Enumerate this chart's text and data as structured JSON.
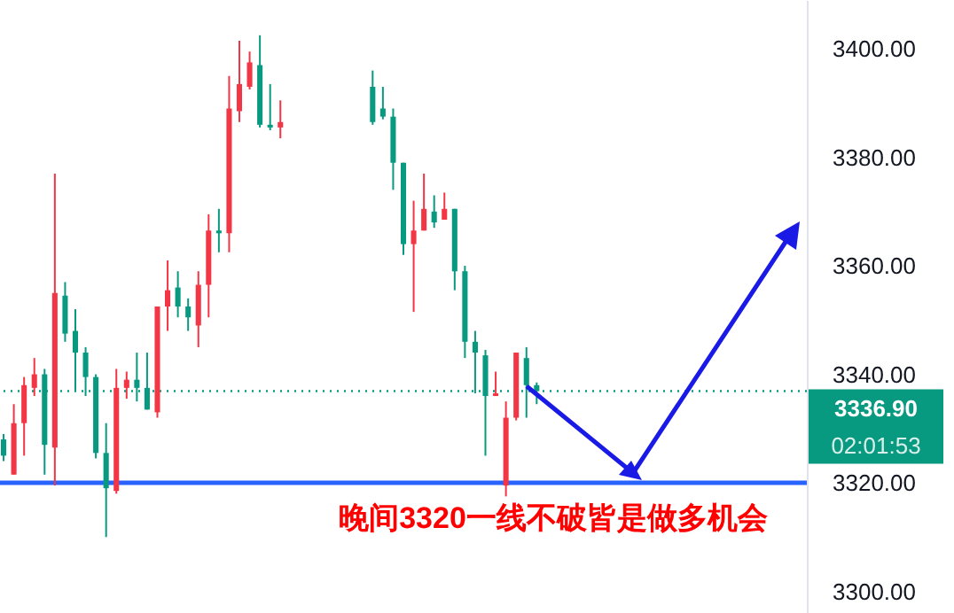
{
  "chart_data": {
    "type": "candlestick",
    "categories": [
      null,
      null,
      null,
      null,
      null,
      null,
      null,
      null,
      null,
      null,
      null,
      null,
      null,
      null,
      null,
      null,
      null,
      null,
      null,
      null,
      null,
      null,
      null,
      null,
      null,
      null,
      null,
      null,
      null,
      null,
      null,
      null,
      null,
      null,
      null,
      null,
      null,
      null,
      null,
      null,
      null,
      null,
      null,
      null,
      null,
      null,
      null,
      null,
      null,
      null,
      null,
      null,
      null,
      null,
      null,
      null,
      null,
      null,
      null,
      null,
      null,
      null,
      null,
      null,
      null,
      null,
      null,
      null,
      null,
      null,
      null,
      null,
      null,
      null,
      null,
      null,
      null,
      null,
      null
    ],
    "ohlc": [
      [
        3328,
        3329,
        3324,
        3325
      ],
      [
        3321.5,
        3334.5,
        3321.5,
        3331
      ],
      [
        3331,
        3339.5,
        3325,
        3338
      ],
      [
        3337.5,
        3343,
        3336,
        3340
      ],
      [
        3340,
        3341,
        3321.5,
        3327
      ],
      [
        3326.5,
        3377,
        3319.5,
        3355
      ],
      [
        3354.5,
        3357,
        3346,
        3347.5
      ],
      [
        3348,
        3352,
        3337,
        3344
      ],
      [
        3344,
        3345,
        3336,
        3339.5
      ],
      [
        3339.5,
        3340,
        3324.5,
        3325.5
      ],
      [
        3325.5,
        3331,
        3310,
        3319
      ],
      [
        3318.5,
        3341,
        3318,
        3337.5
      ],
      [
        3337.5,
        3340.5,
        3335.5,
        3339
      ],
      [
        3339,
        3344,
        3335,
        3337.5
      ],
      [
        3337.5,
        3344,
        3333.5,
        3333.5
      ],
      [
        3333,
        3352.5,
        3332,
        3352.5
      ],
      [
        3352.5,
        3361,
        3348,
        3355.5
      ],
      [
        3356,
        3359,
        3350.5,
        3352.5
      ],
      [
        3352.5,
        3354,
        3348,
        3350.5
      ],
      [
        3349,
        3359,
        3345,
        3356.5
      ],
      [
        3356.5,
        3369.5,
        3350.5,
        3366.5
      ],
      [
        3366.5,
        3370.5,
        3362.5,
        3366
      ],
      [
        3366,
        3395,
        3362.5,
        3389
      ],
      [
        3388.5,
        3401.5,
        3386.5,
        3393.5
      ],
      [
        3393,
        3399.5,
        3392.5,
        3397.5
      ],
      [
        3397,
        3402.5,
        3385.5,
        3386
      ],
      [
        3386,
        3393.5,
        3385,
        3385.5
      ],
      [
        3385.5,
        3390.5,
        3383.5,
        3386.5
      ],
      null,
      null,
      null,
      null,
      null,
      null,
      null,
      null,
      [
        3393,
        3396,
        3386,
        3386.5
      ],
      [
        3389,
        3393,
        3387,
        3387.5
      ],
      [
        3387.5,
        3389,
        3374,
        3379
      ],
      [
        3379,
        3379,
        3362,
        3364
      ],
      [
        3364,
        3372,
        3351.5,
        3366.5
      ],
      [
        3366.5,
        3377,
        3366.5,
        3370.5
      ],
      [
        3370,
        3373,
        3367,
        3368
      ],
      [
        3368.5,
        3373.5,
        3368.5,
        3370.5
      ],
      [
        3370.5,
        3370.5,
        3355.5,
        3359
      ],
      [
        3359,
        3360,
        3343,
        3346
      ],
      [
        3346,
        3348,
        3336.5,
        3344
      ],
      [
        3343.5,
        3344.5,
        3325,
        3336
      ],
      [
        3336,
        3340.5,
        3336,
        3336.5
      ],
      [
        3319.5,
        3335,
        3317.5,
        3332
      ],
      [
        3332,
        3344,
        3331.5,
        3344
      ],
      [
        3343,
        3345,
        3332,
        3338
      ],
      [
        3338,
        3338.5,
        3334.5,
        3336.9
      ],
      null,
      null,
      null,
      null,
      null,
      null,
      null,
      null,
      null,
      null,
      null,
      null,
      null,
      null,
      null,
      null,
      null,
      null,
      null,
      null,
      null,
      null,
      null,
      null,
      null,
      null
    ],
    "colors": [
      "#089981",
      "#f23645",
      "#f23645",
      "#f23645",
      "#089981",
      "#f23645",
      "#089981",
      "#089981",
      "#089981",
      "#089981",
      "#089981",
      "#f23645",
      "#f23645",
      "#089981",
      "#089981",
      "#f23645",
      "#f23645",
      "#089981",
      "#089981",
      "#f23645",
      "#f23645",
      "#089981",
      "#f23645",
      "#f23645",
      "#f23645",
      "#089981",
      "#089981",
      "#f23645",
      null,
      null,
      null,
      null,
      null,
      null,
      null,
      null,
      "#089981",
      "#089981",
      "#089981",
      "#089981",
      "#f23645",
      "#f23645",
      "#089981",
      "#f23645",
      "#089981",
      "#089981",
      "#089981",
      "#089981",
      "#f23645",
      "#f23645",
      "#f23645",
      "#089981",
      "#089981",
      null,
      null,
      null,
      null,
      null,
      null,
      null,
      null,
      null,
      null,
      null,
      null,
      null,
      null,
      null,
      null,
      null,
      null,
      null,
      null,
      null,
      null,
      null,
      null,
      null,
      null
    ],
    "ylim": [
      3296,
      3409
    ],
    "yticks": [
      {
        "value": 3300,
        "label": "3300.00"
      },
      {
        "value": 3320,
        "label": "3320.00"
      },
      {
        "value": 3340,
        "label": "3340.00"
      },
      {
        "value": 3360,
        "label": "3360.00"
      },
      {
        "value": 3380,
        "label": "3380.00"
      },
      {
        "value": 3400,
        "label": "3400.00"
      }
    ],
    "ref_lines": [
      {
        "axis": "y",
        "value": 3320,
        "color": "#2962ff",
        "line_style": "solid"
      },
      {
        "axis": "y",
        "value": 3336.9,
        "label": "3336.90",
        "color": "#089981",
        "line_style": "dotted"
      }
    ],
    "annotations": [
      "晚间3320一线不破皆是做多机会",
      "02:01:53"
    ]
  }
}
